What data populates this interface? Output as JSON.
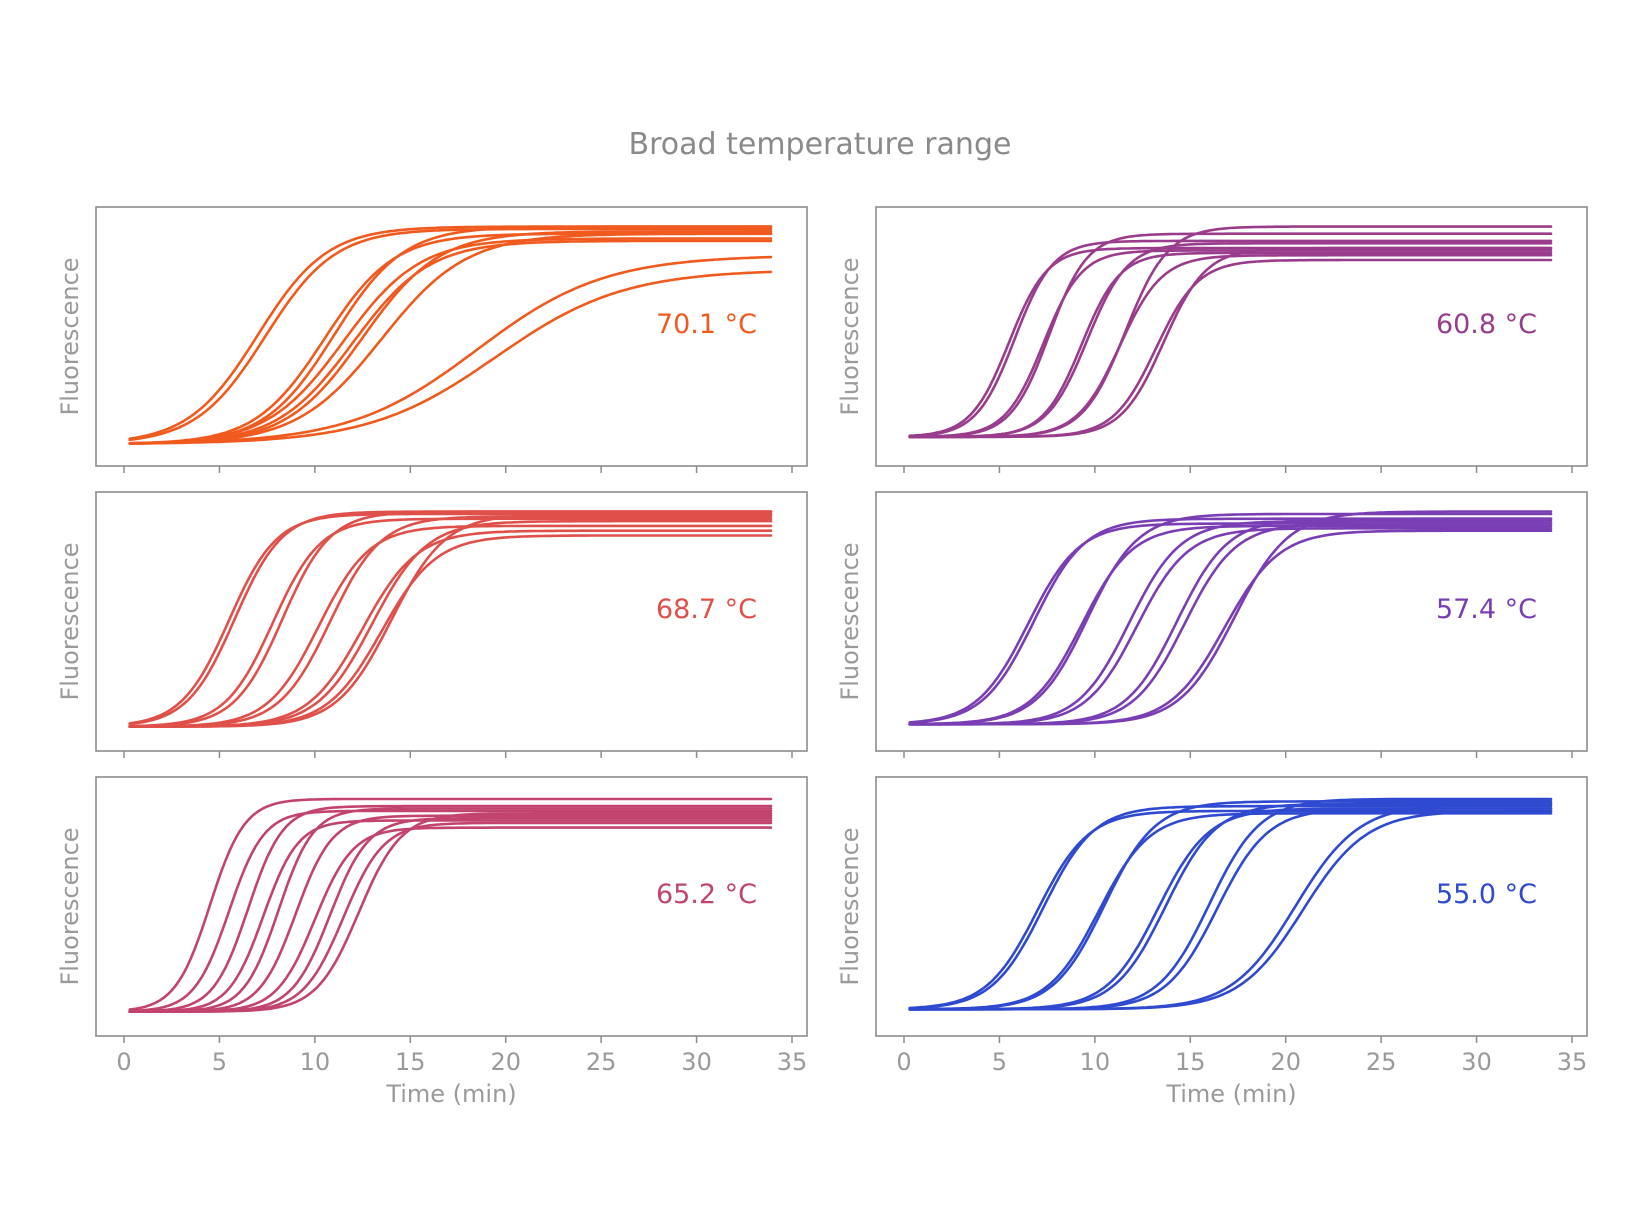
{
  "figure_title": "Broad temperature range",
  "chart_data": [
    {
      "type": "line",
      "temperature_label": "70.1 °C",
      "color": "#f05a1e",
      "ylabel": "Fluorescence",
      "xlabel": "",
      "xlim": [
        0,
        35
      ],
      "ylim": [
        0,
        1
      ],
      "xticks": [
        0,
        5,
        10,
        15,
        20,
        25,
        30,
        35
      ],
      "show_xtick_labels": false,
      "x_end": 34,
      "baseline": 0.05,
      "curves": [
        {
          "ct": 7.0,
          "k": 0.55,
          "max": 0.96
        },
        {
          "ct": 7.4,
          "k": 0.55,
          "max": 0.95
        },
        {
          "ct": 10.5,
          "k": 0.55,
          "max": 0.93
        },
        {
          "ct": 11.0,
          "k": 0.55,
          "max": 0.96
        },
        {
          "ct": 11.5,
          "k": 0.5,
          "max": 0.91
        },
        {
          "ct": 12.5,
          "k": 0.5,
          "max": 0.94
        },
        {
          "ct": 12.0,
          "k": 0.5,
          "max": 0.9
        },
        {
          "ct": 13.5,
          "k": 0.45,
          "max": 0.93
        },
        {
          "ct": 18.5,
          "k": 0.3,
          "max": 0.84
        },
        {
          "ct": 19.5,
          "k": 0.3,
          "max": 0.78
        }
      ]
    },
    {
      "type": "line",
      "temperature_label": "60.8 °C",
      "color": "#9a3c8c",
      "ylabel": "Fluorescence",
      "xlabel": "",
      "xlim": [
        0,
        35
      ],
      "ylim": [
        0,
        1
      ],
      "xticks": [
        0,
        5,
        10,
        15,
        20,
        25,
        30,
        35
      ],
      "show_xtick_labels": false,
      "x_end": 34,
      "baseline": 0.08,
      "curves": [
        {
          "ct": 5.5,
          "k": 1.0,
          "max": 0.87
        },
        {
          "ct": 5.8,
          "k": 1.0,
          "max": 0.9
        },
        {
          "ct": 7.3,
          "k": 1.0,
          "max": 0.86
        },
        {
          "ct": 7.6,
          "k": 1.0,
          "max": 0.93
        },
        {
          "ct": 9.3,
          "k": 1.0,
          "max": 0.85
        },
        {
          "ct": 9.6,
          "k": 0.95,
          "max": 0.89
        },
        {
          "ct": 11.3,
          "k": 0.9,
          "max": 0.84
        },
        {
          "ct": 11.6,
          "k": 0.9,
          "max": 0.96
        },
        {
          "ct": 13.2,
          "k": 0.9,
          "max": 0.82
        },
        {
          "ct": 13.6,
          "k": 0.9,
          "max": 0.87
        }
      ]
    },
    {
      "type": "line",
      "temperature_label": "68.7 °C",
      "color": "#e0504a",
      "ylabel": "Fluorescence",
      "xlabel": "",
      "xlim": [
        0,
        35
      ],
      "ylim": [
        0,
        1
      ],
      "xticks": [
        0,
        5,
        10,
        15,
        20,
        25,
        30,
        35
      ],
      "show_xtick_labels": false,
      "x_end": 34,
      "baseline": 0.06,
      "curves": [
        {
          "ct": 5.5,
          "k": 0.8,
          "max": 0.95
        },
        {
          "ct": 5.8,
          "k": 0.8,
          "max": 0.96
        },
        {
          "ct": 7.8,
          "k": 0.8,
          "max": 0.93
        },
        {
          "ct": 8.3,
          "k": 0.8,
          "max": 0.96
        },
        {
          "ct": 10.2,
          "k": 0.75,
          "max": 0.9
        },
        {
          "ct": 10.8,
          "k": 0.75,
          "max": 0.94
        },
        {
          "ct": 12.5,
          "k": 0.7,
          "max": 0.88
        },
        {
          "ct": 13.0,
          "k": 0.7,
          "max": 0.92
        },
        {
          "ct": 13.5,
          "k": 0.7,
          "max": 0.86
        },
        {
          "ct": 14.0,
          "k": 0.7,
          "max": 0.95
        }
      ]
    },
    {
      "type": "line",
      "temperature_label": "57.4 °C",
      "color": "#7a3eb4",
      "ylabel": "Fluorescence",
      "xlabel": "",
      "xlim": [
        0,
        35
      ],
      "ylim": [
        0,
        1
      ],
      "xticks": [
        0,
        5,
        10,
        15,
        20,
        25,
        30,
        35
      ],
      "show_xtick_labels": false,
      "x_end": 34,
      "baseline": 0.07,
      "curves": [
        {
          "ct": 6.5,
          "k": 0.75,
          "max": 0.91
        },
        {
          "ct": 6.8,
          "k": 0.75,
          "max": 0.93
        },
        {
          "ct": 9.3,
          "k": 0.75,
          "max": 0.9
        },
        {
          "ct": 9.6,
          "k": 0.75,
          "max": 0.95
        },
        {
          "ct": 11.8,
          "k": 0.75,
          "max": 0.92
        },
        {
          "ct": 12.2,
          "k": 0.75,
          "max": 0.89
        },
        {
          "ct": 14.3,
          "k": 0.75,
          "max": 0.93
        },
        {
          "ct": 14.7,
          "k": 0.75,
          "max": 0.91
        },
        {
          "ct": 16.8,
          "k": 0.7,
          "max": 0.88
        },
        {
          "ct": 17.3,
          "k": 0.7,
          "max": 0.96
        }
      ]
    },
    {
      "type": "line",
      "temperature_label": "65.2 °C",
      "color": "#c2446e",
      "ylabel": "Fluorescence",
      "xlabel": "Time (min)",
      "xlim": [
        0,
        35
      ],
      "ylim": [
        0,
        1
      ],
      "xticks": [
        0,
        5,
        10,
        15,
        20,
        25,
        30,
        35
      ],
      "show_xtick_labels": true,
      "x_end": 34,
      "baseline": 0.06,
      "curves": [
        {
          "ct": 4.5,
          "k": 1.1,
          "max": 0.95
        },
        {
          "ct": 5.5,
          "k": 1.1,
          "max": 0.9
        },
        {
          "ct": 6.5,
          "k": 1.1,
          "max": 0.92
        },
        {
          "ct": 7.3,
          "k": 1.1,
          "max": 0.86
        },
        {
          "ct": 8.1,
          "k": 1.1,
          "max": 0.91
        },
        {
          "ct": 9.0,
          "k": 1.05,
          "max": 0.88
        },
        {
          "ct": 10.0,
          "k": 1.0,
          "max": 0.83
        },
        {
          "ct": 10.8,
          "k": 1.0,
          "max": 0.87
        },
        {
          "ct": 11.5,
          "k": 0.95,
          "max": 0.85
        },
        {
          "ct": 12.3,
          "k": 0.9,
          "max": 0.89
        }
      ]
    },
    {
      "type": "line",
      "temperature_label": "55.0 °C",
      "color": "#2f4ad0",
      "ylabel": "Fluorescence",
      "xlabel": "Time (min)",
      "xlim": [
        0,
        35
      ],
      "ylim": [
        0,
        1
      ],
      "xticks": [
        0,
        5,
        10,
        15,
        20,
        25,
        30,
        35
      ],
      "show_xtick_labels": true,
      "x_end": 34,
      "baseline": 0.07,
      "curves": [
        {
          "ct": 7.0,
          "k": 0.75,
          "max": 0.9
        },
        {
          "ct": 7.3,
          "k": 0.75,
          "max": 0.92
        },
        {
          "ct": 10.2,
          "k": 0.75,
          "max": 0.89
        },
        {
          "ct": 10.5,
          "k": 0.75,
          "max": 0.94
        },
        {
          "ct": 13.3,
          "k": 0.75,
          "max": 0.91
        },
        {
          "ct": 13.7,
          "k": 0.75,
          "max": 0.93
        },
        {
          "ct": 16.0,
          "k": 0.75,
          "max": 0.95
        },
        {
          "ct": 16.4,
          "k": 0.75,
          "max": 0.91
        },
        {
          "ct": 20.5,
          "k": 0.6,
          "max": 0.93
        },
        {
          "ct": 20.9,
          "k": 0.6,
          "max": 0.9
        }
      ]
    }
  ]
}
